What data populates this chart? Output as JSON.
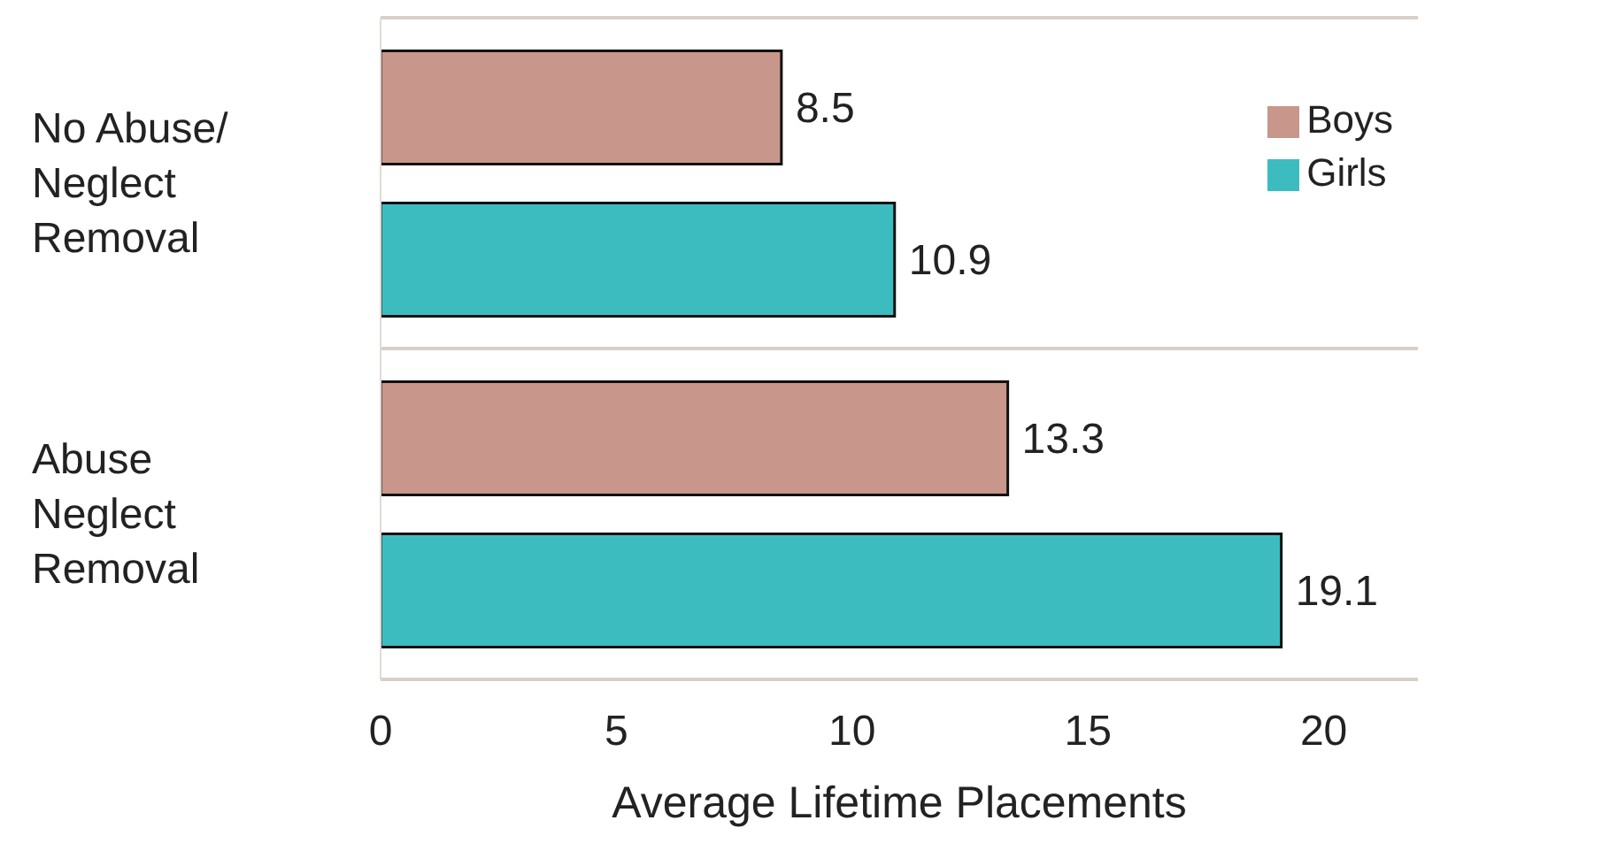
{
  "chart_data": {
    "type": "bar",
    "orientation": "horizontal",
    "categories": [
      "No Abuse/\nNeglect\nRemoval",
      "Abuse\nNeglect\nRemoval"
    ],
    "series": [
      {
        "name": "Boys",
        "color": "#c8968a",
        "values": [
          8.5,
          13.3
        ]
      },
      {
        "name": "Girls",
        "color": "#3dbcc0",
        "values": [
          10.9,
          19.1
        ]
      }
    ],
    "xlabel": "Average Lifetime Placements",
    "xlim": [
      0,
      22
    ],
    "xticks": [
      0,
      5,
      10,
      15,
      20
    ],
    "data_labels": true,
    "legend": "top right",
    "grid": "y"
  }
}
